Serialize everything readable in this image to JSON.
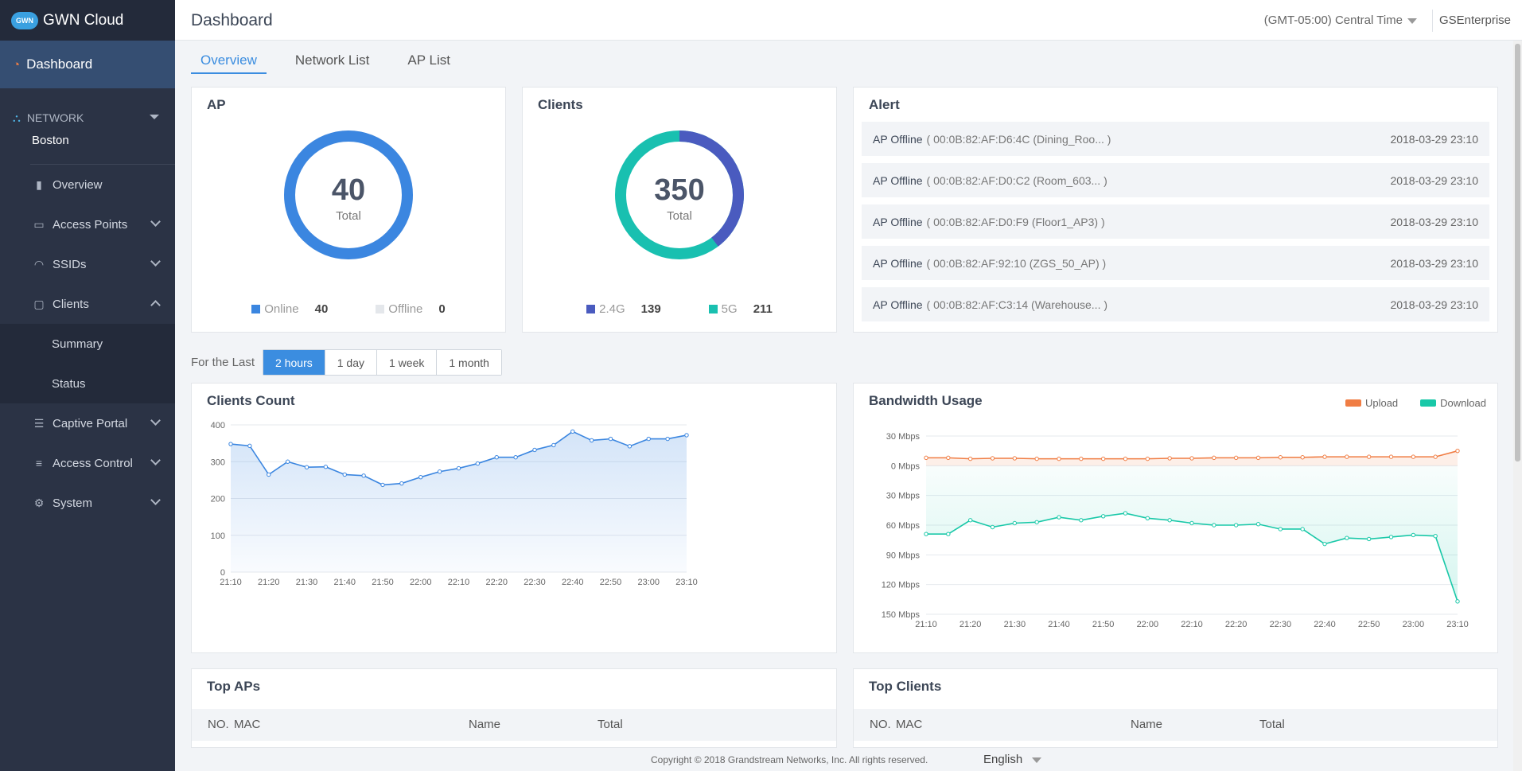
{
  "brand": {
    "logo": "GWN",
    "name": "GWN Cloud"
  },
  "sidebar": {
    "dashboard": "Dashboard",
    "network_label": "NETWORK",
    "network_name": "Boston",
    "items": [
      {
        "label": "Overview",
        "icon": "bar-chart-icon"
      },
      {
        "label": "Access Points",
        "icon": "access-point-icon"
      },
      {
        "label": "SSIDs",
        "icon": "wifi-icon"
      },
      {
        "label": "Clients",
        "icon": "devices-icon"
      },
      {
        "label": "Captive Portal",
        "icon": "list-icon"
      },
      {
        "label": "Access Control",
        "icon": "sliders-icon"
      },
      {
        "label": "System",
        "icon": "gear-icon"
      }
    ],
    "clients_sub": [
      "Summary",
      "Status"
    ]
  },
  "header": {
    "title": "Dashboard",
    "timezone": "(GMT-05:00) Central Time",
    "user": "GSEnterprise"
  },
  "tabs": [
    "Overview",
    "Network List",
    "AP List"
  ],
  "ap_card": {
    "title": "AP",
    "total": "40",
    "total_label": "Total",
    "online_label": "Online",
    "online": "40",
    "offline_label": "Offline",
    "offline": "0",
    "colors": {
      "online": "#3b86e0",
      "offline": "#e4e7eb"
    }
  },
  "clients_card": {
    "title": "Clients",
    "total": "350",
    "total_label": "Total",
    "g24_label": "2.4G",
    "g24": "139",
    "g5_label": "5G",
    "g5": "211",
    "colors": {
      "g24": "#4a5bbf",
      "g5": "#19c0b0"
    }
  },
  "alert_card": {
    "title": "Alert",
    "rows": [
      {
        "type": "AP Offline",
        "detail": "( 00:0B:82:AF:D6:4C (Dining_Roo... )",
        "time": "2018-03-29 23:10"
      },
      {
        "type": "AP Offline",
        "detail": "( 00:0B:82:AF:D0:C2 (Room_603... )",
        "time": "2018-03-29 23:10"
      },
      {
        "type": "AP Offline",
        "detail": "( 00:0B:82:AF:D0:F9 (Floor1_AP3) )",
        "time": "2018-03-29 23:10"
      },
      {
        "type": "AP Offline",
        "detail": "( 00:0B:82:AF:92:10 (ZGS_50_AP) )",
        "time": "2018-03-29 23:10"
      },
      {
        "type": "AP Offline",
        "detail": "( 00:0B:82:AF:C3:14 (Warehouse... )",
        "time": "2018-03-29 23:10"
      }
    ]
  },
  "period": {
    "label": "For the Last",
    "options": [
      "2 hours",
      "1 day",
      "1 week",
      "1 month"
    ],
    "selected": "2 hours"
  },
  "chart_data": [
    {
      "type": "area",
      "title": "Clients Count",
      "x": [
        "21:10",
        "21:15",
        "21:20",
        "21:25",
        "21:30",
        "21:35",
        "21:40",
        "21:45",
        "21:50",
        "21:55",
        "22:00",
        "22:05",
        "22:10",
        "22:15",
        "22:20",
        "22:25",
        "22:30",
        "22:35",
        "22:40",
        "22:45",
        "22:50",
        "22:55",
        "23:00",
        "23:05",
        "23:10"
      ],
      "xticks": [
        "21:10",
        "21:20",
        "21:30",
        "21:40",
        "21:50",
        "22:00",
        "22:10",
        "22:20",
        "22:30",
        "22:40",
        "22:50",
        "23:00",
        "23:10"
      ],
      "yticks": [
        "400",
        "300",
        "200",
        "100",
        "0"
      ],
      "ylim": [
        0,
        400
      ],
      "series": [
        {
          "values": [
            348,
            343,
            265,
            300,
            285,
            286,
            265,
            262,
            237,
            241,
            258,
            273,
            282,
            295,
            312,
            312,
            332,
            345,
            382,
            358,
            362,
            342,
            362,
            362,
            372
          ]
        }
      ],
      "color": "#3b86e0",
      "grid": true
    },
    {
      "type": "line",
      "title": "Bandwidth Usage",
      "x": [
        "21:10",
        "21:15",
        "21:20",
        "21:25",
        "21:30",
        "21:35",
        "21:40",
        "21:45",
        "21:50",
        "21:55",
        "22:00",
        "22:05",
        "22:10",
        "22:15",
        "22:20",
        "22:25",
        "22:30",
        "22:35",
        "22:40",
        "22:45",
        "22:50",
        "22:55",
        "23:00",
        "23:05",
        "23:10"
      ],
      "xticks": [
        "21:10",
        "21:20",
        "21:30",
        "21:40",
        "21:50",
        "22:00",
        "22:10",
        "22:20",
        "22:30",
        "22:40",
        "22:50",
        "23:00",
        "23:10"
      ],
      "yticks": [
        "30 Mbps",
        "0 Mbps",
        "30 Mbps",
        "60 Mbps",
        "90 Mbps",
        "120 Mbps",
        "150 Mbps"
      ],
      "ylim": [
        -150,
        30
      ],
      "series": [
        {
          "name": "Upload",
          "color": "#f07d44",
          "values": [
            8,
            8,
            7,
            7.5,
            7.5,
            7,
            7,
            7,
            7,
            7,
            7,
            7.5,
            7.5,
            8,
            8,
            8,
            8.5,
            8.5,
            9,
            9,
            9,
            9,
            9,
            9,
            15
          ]
        },
        {
          "name": "Download",
          "color": "#19c8a8",
          "values": [
            -69,
            -69,
            -55,
            -62,
            -58,
            -57,
            -52,
            -55,
            -51,
            -48,
            -53,
            -55,
            -58,
            -60,
            -60,
            -59,
            -64,
            -64,
            -79,
            -73,
            -74,
            -72,
            -70,
            -71,
            -137
          ]
        }
      ],
      "grid": true,
      "legend": "top-right"
    }
  ],
  "top_aps": {
    "title": "Top APs",
    "cols": [
      "NO.",
      "MAC",
      "Name",
      "Total"
    ]
  },
  "top_clients": {
    "title": "Top Clients",
    "cols": [
      "NO.",
      "MAC",
      "Name",
      "Total"
    ]
  },
  "footer": {
    "copyright": "Copyright © 2018 Grandstream Networks, Inc. All rights reserved.",
    "language": "English"
  }
}
